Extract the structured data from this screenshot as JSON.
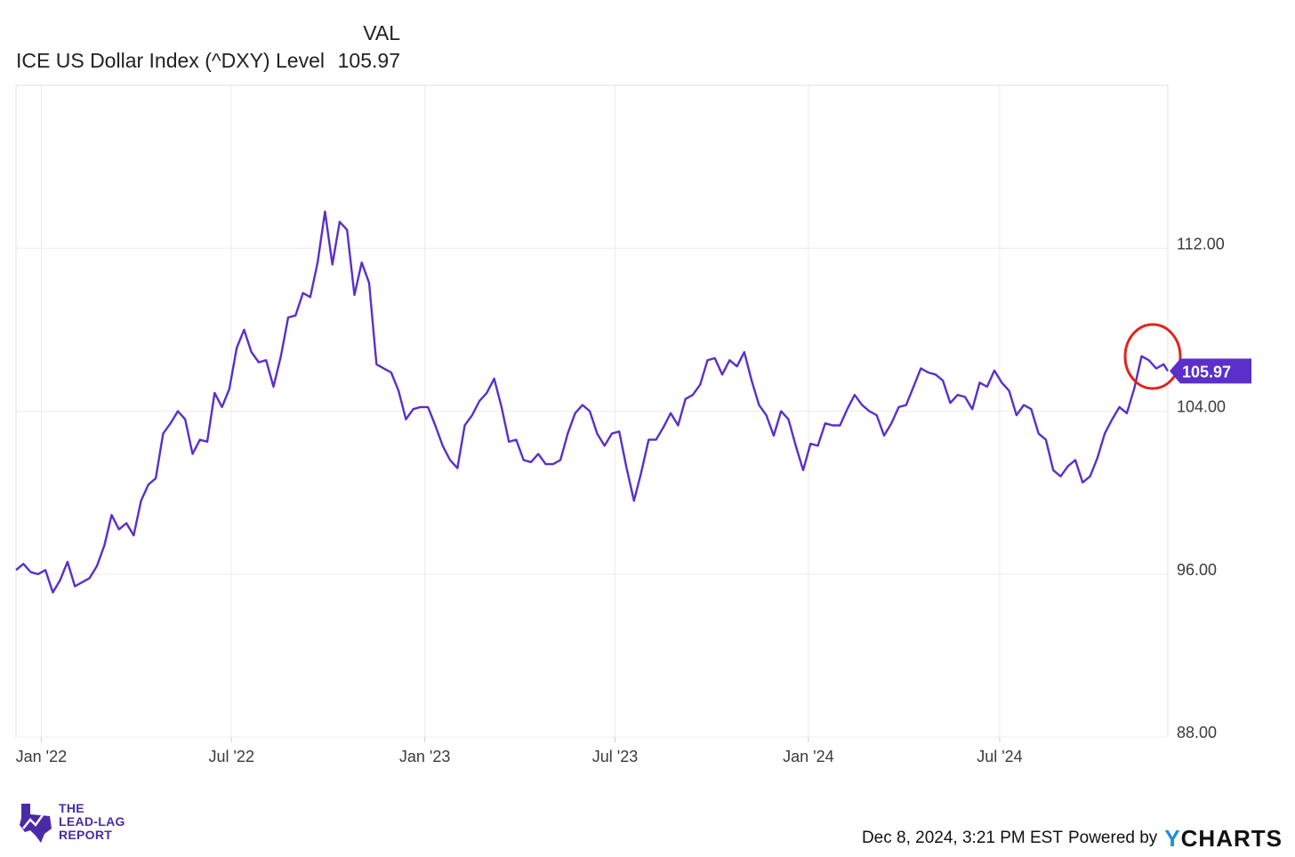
{
  "legend": {
    "value_header": "VAL",
    "series_name": "ICE US Dollar Index (^DXY) Level",
    "series_value": "105.97"
  },
  "chart_data": {
    "type": "line",
    "title": "",
    "xlabel": "",
    "ylabel": "",
    "x_ticks": [
      "Jan '22",
      "Jul '22",
      "Jan '23",
      "Jul '23",
      "Jan '24",
      "Jul '24"
    ],
    "y_ticks": [
      "88.00",
      "96.00",
      "104.00",
      "112.00"
    ],
    "ylim": [
      88,
      120
    ],
    "xlim": [
      "2021-12-08",
      "2024-12-08"
    ],
    "grid": true,
    "series": [
      {
        "name": "ICE US Dollar Index (^DXY) Level",
        "color": "#5b2fc9",
        "last_value_label": "105.97",
        "points": [
          [
            "2021-12-08",
            96.2
          ],
          [
            "2021-12-15",
            96.5
          ],
          [
            "2021-12-22",
            96.1
          ],
          [
            "2021-12-29",
            96.0
          ],
          [
            "2022-01-05",
            96.2
          ],
          [
            "2022-01-12",
            95.1
          ],
          [
            "2022-01-19",
            95.7
          ],
          [
            "2022-01-26",
            96.6
          ],
          [
            "2022-02-02",
            95.4
          ],
          [
            "2022-02-09",
            95.6
          ],
          [
            "2022-02-16",
            95.8
          ],
          [
            "2022-02-23",
            96.4
          ],
          [
            "2022-03-02",
            97.4
          ],
          [
            "2022-03-09",
            98.9
          ],
          [
            "2022-03-16",
            98.2
          ],
          [
            "2022-03-23",
            98.5
          ],
          [
            "2022-03-30",
            97.9
          ],
          [
            "2022-04-06",
            99.6
          ],
          [
            "2022-04-13",
            100.4
          ],
          [
            "2022-04-20",
            100.7
          ],
          [
            "2022-04-27",
            102.9
          ],
          [
            "2022-05-04",
            103.4
          ],
          [
            "2022-05-11",
            104.0
          ],
          [
            "2022-05-18",
            103.6
          ],
          [
            "2022-05-25",
            101.9
          ],
          [
            "2022-06-01",
            102.6
          ],
          [
            "2022-06-08",
            102.5
          ],
          [
            "2022-06-15",
            104.9
          ],
          [
            "2022-06-22",
            104.2
          ],
          [
            "2022-06-29",
            105.1
          ],
          [
            "2022-07-06",
            107.1
          ],
          [
            "2022-07-13",
            108.0
          ],
          [
            "2022-07-20",
            106.9
          ],
          [
            "2022-07-27",
            106.4
          ],
          [
            "2022-08-03",
            106.5
          ],
          [
            "2022-08-10",
            105.2
          ],
          [
            "2022-08-17",
            106.7
          ],
          [
            "2022-08-24",
            108.6
          ],
          [
            "2022-08-31",
            108.7
          ],
          [
            "2022-09-07",
            109.8
          ],
          [
            "2022-09-14",
            109.6
          ],
          [
            "2022-09-21",
            111.3
          ],
          [
            "2022-09-28",
            113.8
          ],
          [
            "2022-10-05",
            111.2
          ],
          [
            "2022-10-12",
            113.3
          ],
          [
            "2022-10-19",
            112.9
          ],
          [
            "2022-10-26",
            109.7
          ],
          [
            "2022-11-02",
            111.3
          ],
          [
            "2022-11-09",
            110.3
          ],
          [
            "2022-11-16",
            106.3
          ],
          [
            "2022-11-23",
            106.1
          ],
          [
            "2022-11-30",
            105.9
          ],
          [
            "2022-12-07",
            105.0
          ],
          [
            "2022-12-14",
            103.6
          ],
          [
            "2022-12-21",
            104.1
          ],
          [
            "2022-12-28",
            104.2
          ],
          [
            "2023-01-04",
            104.2
          ],
          [
            "2023-01-11",
            103.3
          ],
          [
            "2023-01-18",
            102.3
          ],
          [
            "2023-01-25",
            101.6
          ],
          [
            "2023-02-01",
            101.2
          ],
          [
            "2023-02-08",
            103.3
          ],
          [
            "2023-02-15",
            103.8
          ],
          [
            "2023-02-22",
            104.5
          ],
          [
            "2023-03-01",
            104.9
          ],
          [
            "2023-03-08",
            105.6
          ],
          [
            "2023-03-15",
            104.2
          ],
          [
            "2023-03-22",
            102.5
          ],
          [
            "2023-03-29",
            102.6
          ],
          [
            "2023-04-05",
            101.6
          ],
          [
            "2023-04-12",
            101.5
          ],
          [
            "2023-04-19",
            101.9
          ],
          [
            "2023-04-26",
            101.4
          ],
          [
            "2023-05-03",
            101.4
          ],
          [
            "2023-05-10",
            101.6
          ],
          [
            "2023-05-17",
            102.9
          ],
          [
            "2023-05-24",
            103.9
          ],
          [
            "2023-05-31",
            104.3
          ],
          [
            "2023-06-07",
            104.0
          ],
          [
            "2023-06-14",
            102.9
          ],
          [
            "2023-06-21",
            102.3
          ],
          [
            "2023-06-28",
            102.9
          ],
          [
            "2023-07-05",
            103.0
          ],
          [
            "2023-07-12",
            101.2
          ],
          [
            "2023-07-19",
            99.6
          ],
          [
            "2023-07-26",
            101.0
          ],
          [
            "2023-08-02",
            102.6
          ],
          [
            "2023-08-09",
            102.6
          ],
          [
            "2023-08-16",
            103.2
          ],
          [
            "2023-08-23",
            103.9
          ],
          [
            "2023-08-30",
            103.3
          ],
          [
            "2023-09-06",
            104.6
          ],
          [
            "2023-09-13",
            104.8
          ],
          [
            "2023-09-20",
            105.3
          ],
          [
            "2023-09-27",
            106.5
          ],
          [
            "2023-10-04",
            106.6
          ],
          [
            "2023-10-11",
            105.8
          ],
          [
            "2023-10-18",
            106.5
          ],
          [
            "2023-10-25",
            106.2
          ],
          [
            "2023-11-01",
            106.9
          ],
          [
            "2023-11-08",
            105.5
          ],
          [
            "2023-11-15",
            104.3
          ],
          [
            "2023-11-22",
            103.8
          ],
          [
            "2023-11-29",
            102.8
          ],
          [
            "2023-12-06",
            104.0
          ],
          [
            "2023-12-13",
            103.6
          ],
          [
            "2023-12-20",
            102.3
          ],
          [
            "2023-12-27",
            101.1
          ],
          [
            "2024-01-03",
            102.4
          ],
          [
            "2024-01-10",
            102.3
          ],
          [
            "2024-01-17",
            103.4
          ],
          [
            "2024-01-24",
            103.3
          ],
          [
            "2024-01-31",
            103.3
          ],
          [
            "2024-02-07",
            104.1
          ],
          [
            "2024-02-14",
            104.8
          ],
          [
            "2024-02-21",
            104.3
          ],
          [
            "2024-02-28",
            104.0
          ],
          [
            "2024-03-06",
            103.8
          ],
          [
            "2024-03-13",
            102.8
          ],
          [
            "2024-03-20",
            103.4
          ],
          [
            "2024-03-27",
            104.2
          ],
          [
            "2024-04-03",
            104.3
          ],
          [
            "2024-04-10",
            105.2
          ],
          [
            "2024-04-17",
            106.1
          ],
          [
            "2024-04-24",
            105.9
          ],
          [
            "2024-05-01",
            105.8
          ],
          [
            "2024-05-08",
            105.5
          ],
          [
            "2024-05-15",
            104.4
          ],
          [
            "2024-05-22",
            104.8
          ],
          [
            "2024-05-29",
            104.7
          ],
          [
            "2024-06-05",
            104.1
          ],
          [
            "2024-06-12",
            105.4
          ],
          [
            "2024-06-19",
            105.2
          ],
          [
            "2024-06-26",
            106.0
          ],
          [
            "2024-07-03",
            105.4
          ],
          [
            "2024-07-10",
            105.0
          ],
          [
            "2024-07-17",
            103.8
          ],
          [
            "2024-07-24",
            104.3
          ],
          [
            "2024-07-31",
            104.1
          ],
          [
            "2024-08-07",
            102.9
          ],
          [
            "2024-08-14",
            102.6
          ],
          [
            "2024-08-21",
            101.1
          ],
          [
            "2024-08-28",
            100.8
          ],
          [
            "2024-09-04",
            101.3
          ],
          [
            "2024-09-11",
            101.6
          ],
          [
            "2024-09-18",
            100.5
          ],
          [
            "2024-09-25",
            100.8
          ],
          [
            "2024-10-02",
            101.7
          ],
          [
            "2024-10-09",
            102.9
          ],
          [
            "2024-10-16",
            103.6
          ],
          [
            "2024-10-23",
            104.2
          ],
          [
            "2024-10-30",
            103.9
          ],
          [
            "2024-11-06",
            105.1
          ],
          [
            "2024-11-13",
            106.7
          ],
          [
            "2024-11-20",
            106.5
          ],
          [
            "2024-11-27",
            106.1
          ],
          [
            "2024-12-04",
            106.3
          ],
          [
            "2024-12-08",
            105.97
          ]
        ]
      }
    ]
  },
  "annotation": {
    "type": "circle",
    "color": "#e0241b"
  },
  "footer": {
    "brand_line1": "THE",
    "brand_line2": "LEAD-LAG",
    "brand_line3": "REPORT",
    "timestamp": "Dec 8, 2024, 3:21 PM EST",
    "powered_by": "Powered by",
    "logo_y": "Y",
    "logo_rest": "CHARTS"
  }
}
